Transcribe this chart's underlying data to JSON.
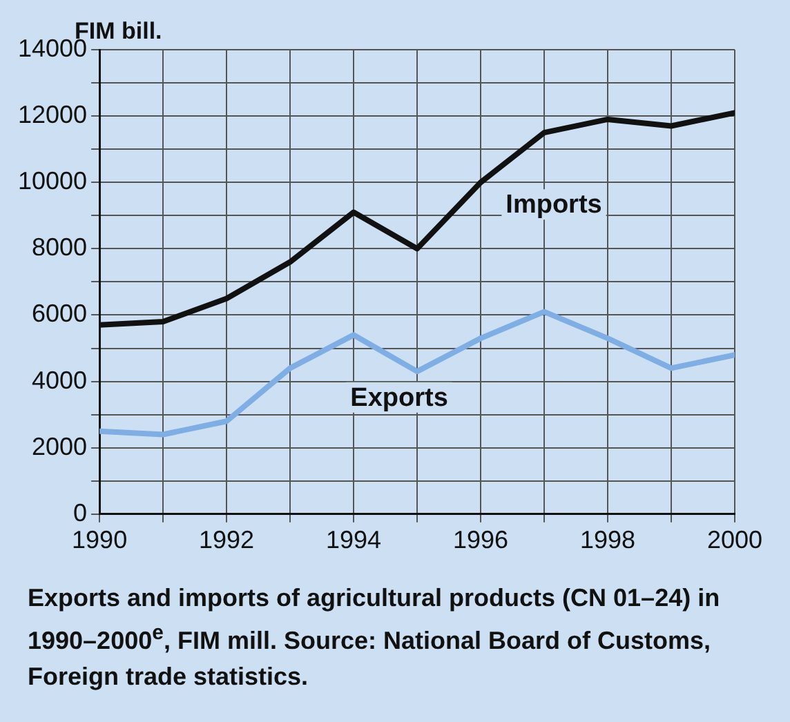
{
  "chart_data": {
    "type": "line",
    "ylabel": "FIM bill.",
    "x": [
      1990,
      1991,
      1992,
      1993,
      1994,
      1995,
      1996,
      1997,
      1998,
      1999,
      2000
    ],
    "series": [
      {
        "name": "Imports",
        "color": "#111111",
        "values": [
          5700,
          5800,
          6500,
          7600,
          9100,
          8000,
          10000,
          11500,
          11900,
          11700,
          12100
        ]
      },
      {
        "name": "Exports",
        "color": "#7eaee3",
        "values": [
          2500,
          2400,
          2800,
          4400,
          5400,
          4300,
          5300,
          6100,
          5300,
          4400,
          4800
        ]
      }
    ],
    "xlim": [
      1990,
      2000
    ],
    "xticks": [
      1990,
      {
        "value": 1991,
        "label": null
      },
      1992,
      {
        "value": 1993,
        "label": null
      },
      1994,
      {
        "value": 1995,
        "label": null
      },
      1996,
      {
        "value": 1997,
        "label": null
      },
      1998,
      {
        "value": 1999,
        "label": null
      },
      2000
    ],
    "ylim": [
      0,
      14000
    ],
    "yticks": [
      0,
      {
        "value": 1000,
        "label": null
      },
      2000,
      {
        "value": 3000,
        "label": null
      },
      4000,
      {
        "value": 5000,
        "label": null
      },
      6000,
      {
        "value": 7000,
        "label": null
      },
      8000,
      {
        "value": 9000,
        "label": null
      },
      10000,
      {
        "value": 11000,
        "label": null
      },
      12000,
      {
        "value": 13000,
        "label": null
      },
      14000
    ],
    "grid": true,
    "legend": false,
    "marker": "none",
    "line_style": "solid",
    "annotations": [
      "Exports and imports of agricultural products (CN 01–24) in 1990–2000$^{e}$, FIM mill. Source: National Board of Customs, Foreign trade statistics."
    ]
  }
}
